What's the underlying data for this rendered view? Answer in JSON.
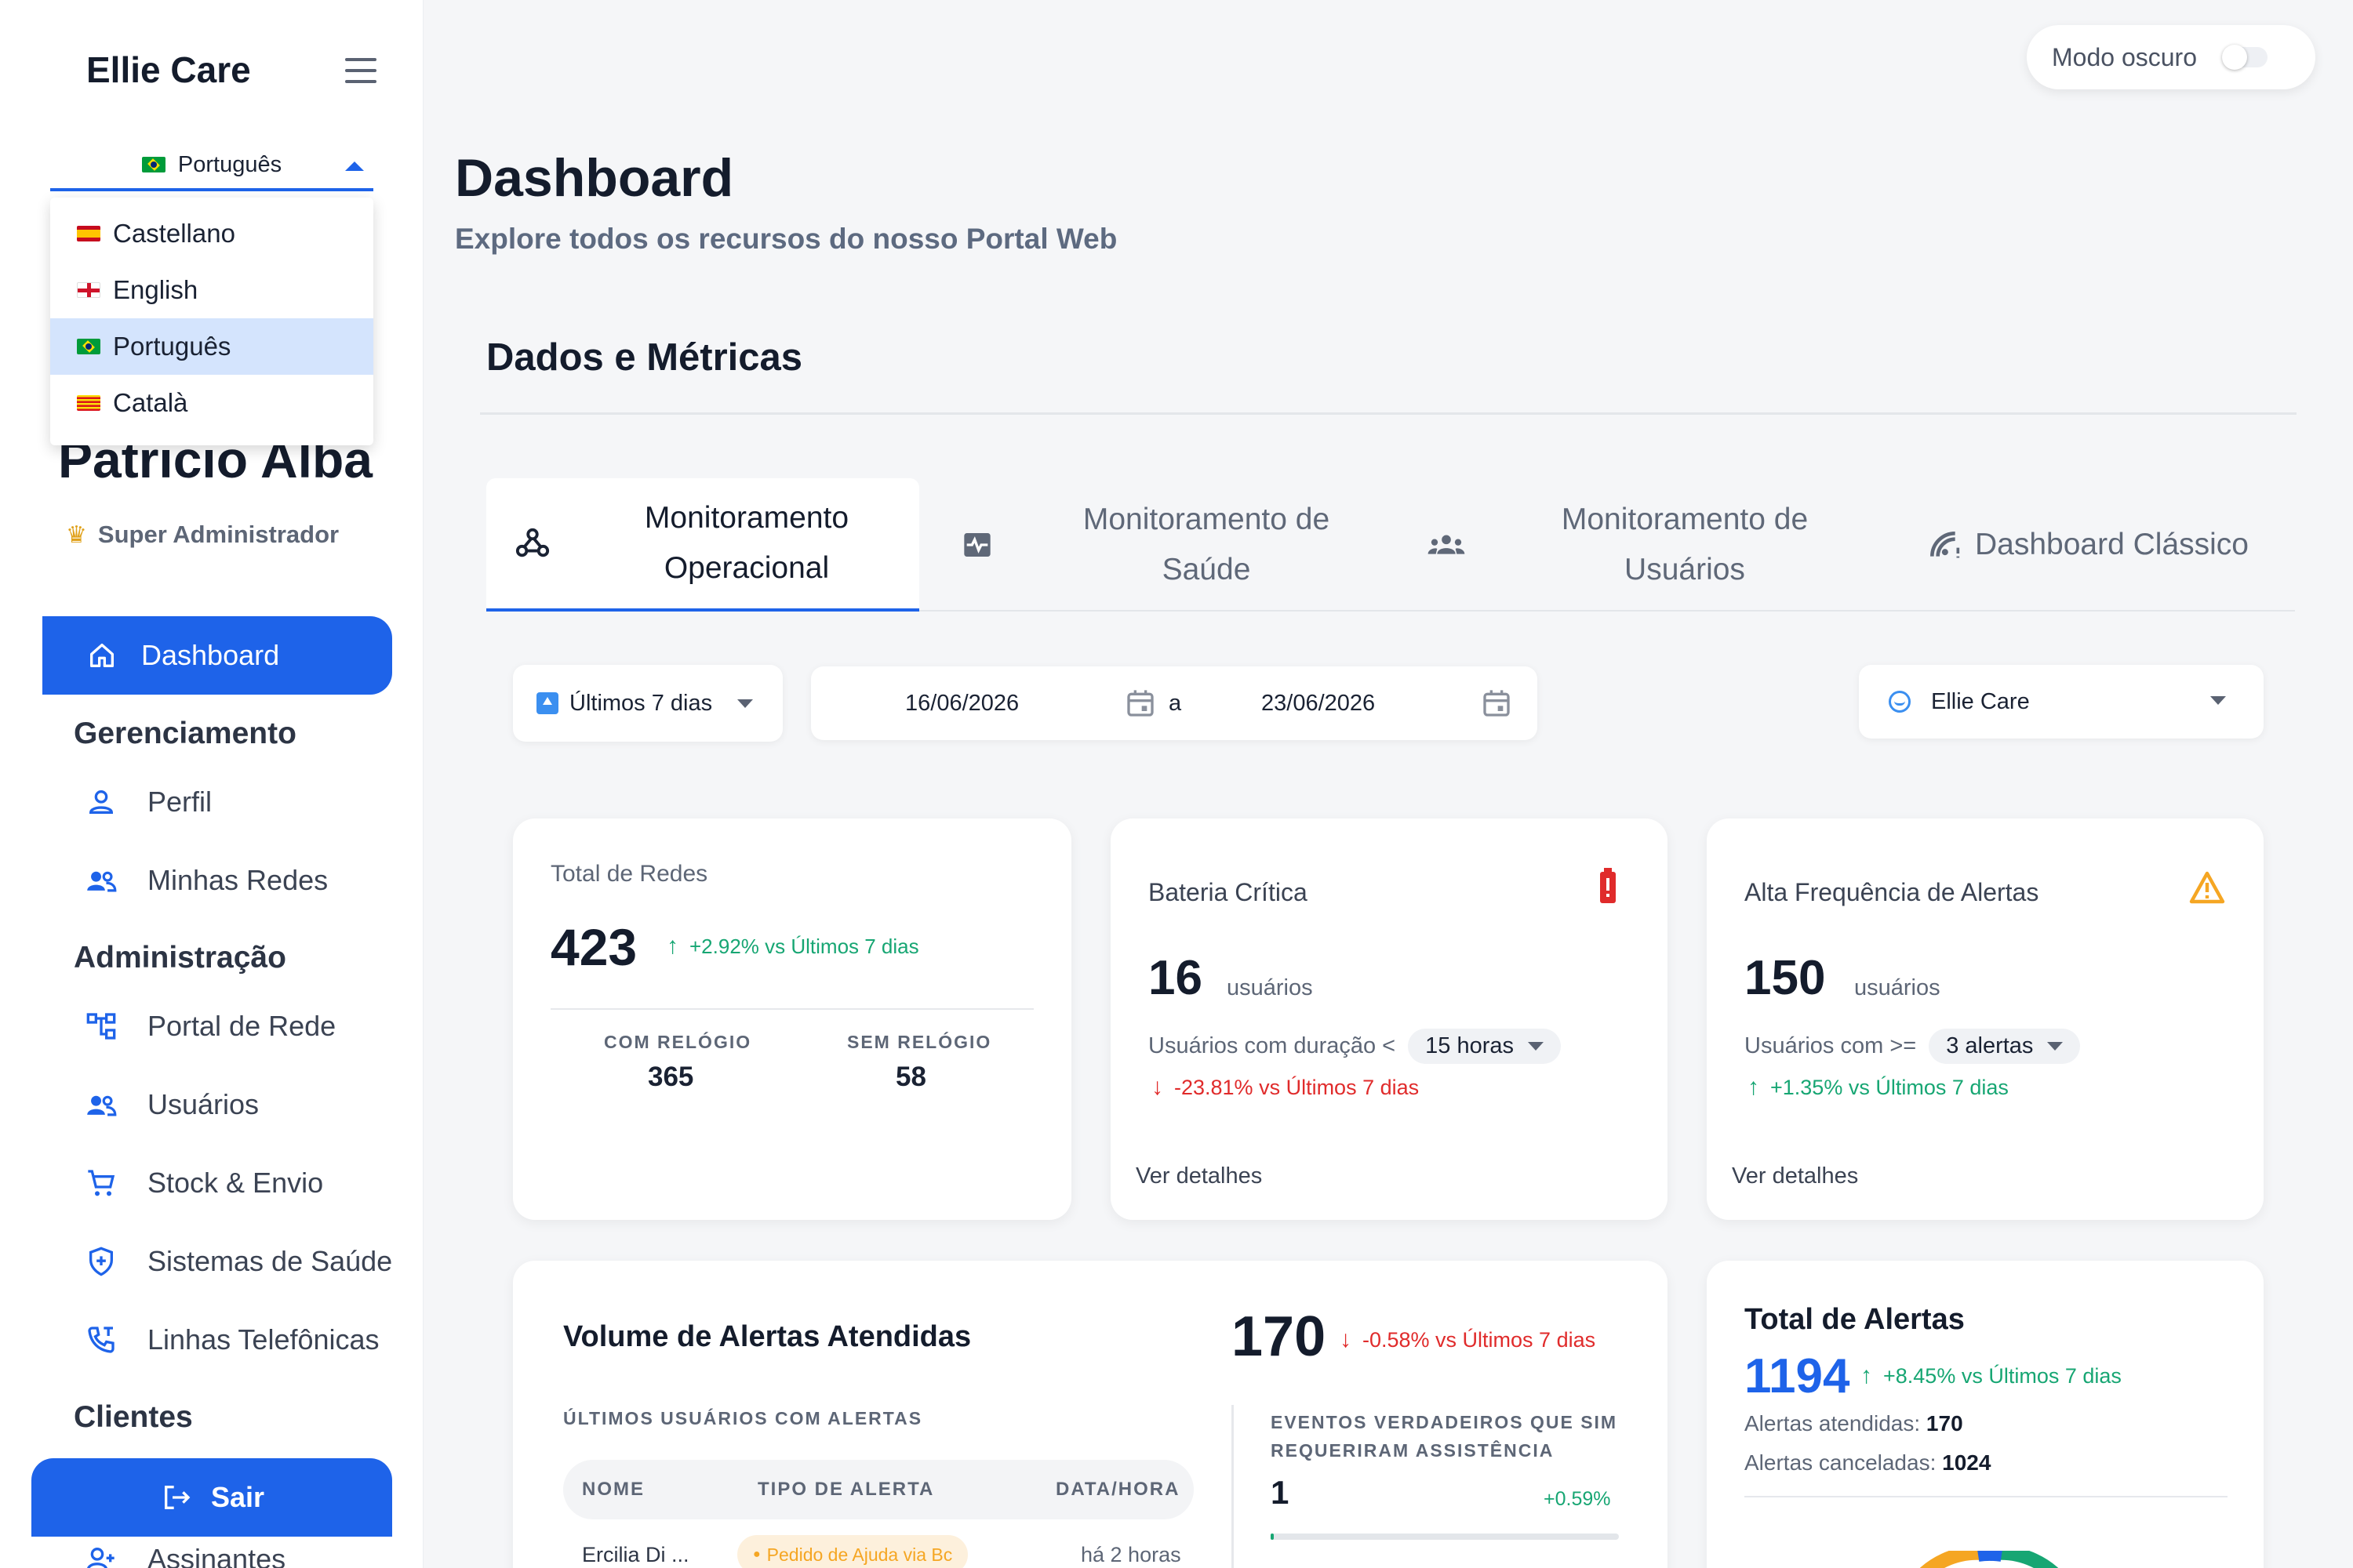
{
  "app": {
    "brand": "Ellie Care"
  },
  "language": {
    "selected": "Português",
    "options": [
      "Castellano",
      "English",
      "Português",
      "Català"
    ]
  },
  "user": {
    "name": "Patricio Alba",
    "role": "Super Administrador"
  },
  "sidebar": {
    "active": "Dashboard",
    "sections": {
      "gerenciamento": "Gerenciamento",
      "administracao": "Administração",
      "clientes": "Clientes"
    },
    "items": {
      "perfil": "Perfil",
      "minhas_redes": "Minhas Redes",
      "portal_rede": "Portal de Rede",
      "usuarios": "Usuários",
      "stock": "Stock & Envio",
      "sistemas": "Sistemas de Saúde",
      "linhas": "Linhas Telefônicas",
      "assinantes": "Assinantes"
    },
    "logout": "Sair"
  },
  "header": {
    "dark_mode_label": "Modo oscuro"
  },
  "page": {
    "title": "Dashboard",
    "subtitle": "Explore todos os recursos do nosso Portal Web",
    "section_title": "Dados e Métricas"
  },
  "tabs": {
    "operacional_1": "Monitoramento",
    "operacional_2": "Operacional",
    "saude_1": "Monitoramento de",
    "saude_2": "Saúde",
    "usuarios_1": "Monitoramento de",
    "usuarios_2": "Usuários",
    "classico": "Dashboard Clássico"
  },
  "filters": {
    "range": "Últimos 7 dias",
    "date_from": "16/06/2026",
    "date_sep": "a",
    "date_to": "23/06/2026",
    "network": "Ellie Care"
  },
  "cards": {
    "redes": {
      "title": "Total de Redes",
      "value": "423",
      "delta": "+2.92% vs Últimos 7 dias",
      "com_label": "COM RELÓGIO",
      "com_value": "365",
      "sem_label": "SEM RELÓGIO",
      "sem_value": "58"
    },
    "bateria": {
      "title": "Bateria Crítica",
      "value": "16",
      "unit": "usuários",
      "filter_label": "Usuários com duração <",
      "filter_value": "15 horas",
      "delta": "-23.81% vs Últimos 7 dias",
      "link": "Ver detalhes"
    },
    "frequencia": {
      "title": "Alta Frequência de Alertas",
      "value": "150",
      "unit": "usuários",
      "filter_label": "Usuários com >=",
      "filter_value": "3 alertas",
      "delta": "+1.35% vs Últimos 7 dias",
      "link": "Ver detalhes"
    },
    "volume": {
      "title": "Volume de Alertas Atendidas",
      "value": "170",
      "delta": "-0.58% vs Últimos 7 dias",
      "table_title": "ÚLTIMOS USUÁRIOS COM ALERTAS",
      "columns": [
        "NOME",
        "TIPO DE ALERTA",
        "DATA/HORA"
      ],
      "rows": [
        {
          "nome": "Ercilia Di ...",
          "tipo": "Pedido de Ajuda via Bc",
          "data": "há 2 horas"
        }
      ],
      "eventos_title_1": "EVENTOS VERDADEIROS QUE SIM",
      "eventos_title_2": "REQUERIRAM ASSISTÊNCIA",
      "eventos_value": "1",
      "eventos_delta": "+0.59%",
      "eventos_progress": 0.01
    },
    "total_alertas": {
      "title": "Total de Alertas",
      "value": "1194",
      "delta": "+8.45% vs Últimos 7 dias",
      "atendidas_label": "Alertas atendidas:",
      "atendidas_value": "170",
      "canceladas_label": "Alertas canceladas:",
      "canceladas_value": "1024"
    }
  },
  "colors": {
    "accent": "#1e63e9",
    "positive": "#17a673",
    "negative": "#e02b2b",
    "warning": "#f5a623"
  }
}
